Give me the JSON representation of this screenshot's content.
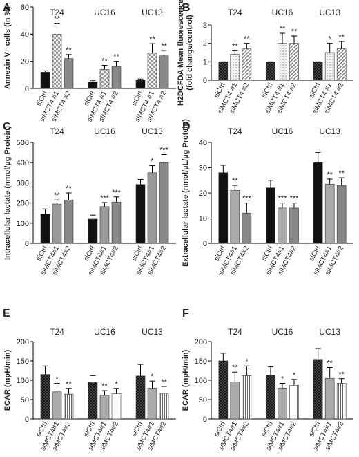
{
  "chart_data": [
    {
      "type": "bar",
      "panel": "A",
      "ylabel": [
        "Annexin V⁺ cells (in %)"
      ],
      "groups": [
        "T24",
        "UC16",
        "UC13"
      ],
      "ylim": [
        0,
        60
      ],
      "yticks": [
        0,
        20,
        40,
        60
      ],
      "series": [
        {
          "name": "siCtrl",
          "color": "#111111",
          "pattern": null,
          "values": [
            12,
            5,
            6
          ],
          "errors": [
            1,
            1,
            1
          ],
          "significance": [
            null,
            null,
            null
          ]
        },
        {
          "name": "siMCT4 #1",
          "color": "#cccccc",
          "pattern": "checker",
          "values": [
            40,
            14,
            26
          ],
          "errors": [
            8,
            3,
            7
          ],
          "significance": [
            "**",
            "**",
            "**"
          ]
        },
        {
          "name": "siMCT4 #2",
          "color": "#888888",
          "pattern": null,
          "values": [
            22,
            16,
            24
          ],
          "errors": [
            3,
            4,
            4
          ],
          "significance": [
            "**",
            "**",
            "**"
          ]
        }
      ]
    },
    {
      "type": "bar",
      "panel": "B",
      "ylabel": [
        "H2DCFDA Mean fluorescence",
        "(fold change/control)"
      ],
      "groups": [
        "T24",
        "UC16",
        "UC13"
      ],
      "ylim": [
        0,
        3
      ],
      "yticks": [
        0,
        1,
        2,
        3
      ],
      "series": [
        {
          "name": "siCtrl",
          "color": "#444444",
          "pattern": "crosshatch",
          "values": [
            1,
            1,
            1
          ],
          "errors": [
            0,
            0,
            0
          ],
          "significance": [
            null,
            null,
            null
          ]
        },
        {
          "name": "siMCT4 #1",
          "color": "#dddddd",
          "pattern": "dots",
          "values": [
            1.4,
            2.0,
            1.5
          ],
          "errors": [
            0.2,
            0.55,
            0.5
          ],
          "significance": [
            "**",
            "**",
            "*"
          ]
        },
        {
          "name": "siMCT4 #2",
          "color": "#aaaaaa",
          "pattern": "diag",
          "values": [
            1.7,
            2.0,
            1.7
          ],
          "errors": [
            0.3,
            0.4,
            0.4
          ],
          "significance": [
            "**",
            "**",
            "**"
          ]
        }
      ]
    },
    {
      "type": "bar",
      "panel": "C",
      "ylabel": [
        "Intracellular lactate (nmol/µg Protein)"
      ],
      "groups": [
        "T24",
        "UC16",
        "UC13"
      ],
      "ylim": [
        0,
        500
      ],
      "yticks": [
        0,
        100,
        200,
        300,
        400,
        500
      ],
      "series": [
        {
          "name": "siCtrl",
          "color": "#111111",
          "pattern": null,
          "values": [
            145,
            120,
            292
          ],
          "errors": [
            25,
            20,
            25
          ],
          "significance": [
            null,
            null,
            null
          ]
        },
        {
          "name": "siMCT4#1",
          "color": "#999999",
          "pattern": null,
          "values": [
            195,
            182,
            350
          ],
          "errors": [
            20,
            20,
            35
          ],
          "significance": [
            "**",
            "***",
            "*"
          ]
        },
        {
          "name": "siMCT4#2",
          "color": "#888888",
          "pattern": null,
          "values": [
            215,
            205,
            400
          ],
          "errors": [
            35,
            25,
            40
          ],
          "significance": [
            "**",
            "***",
            "***"
          ]
        }
      ]
    },
    {
      "type": "bar",
      "panel": "D",
      "ylabel": [
        "Extracellular lactate (nmol/µL/µg Protein)"
      ],
      "groups": [
        "T24",
        "UC16",
        "UC13"
      ],
      "ylim": [
        0,
        40
      ],
      "yticks": [
        0,
        10,
        20,
        30,
        40
      ],
      "series": [
        {
          "name": "siCtrl",
          "color": "#111111",
          "pattern": null,
          "values": [
            28,
            22,
            32
          ],
          "errors": [
            3,
            3,
            4
          ],
          "significance": [
            null,
            null,
            null
          ]
        },
        {
          "name": "siMCT4#1",
          "color": "#aaaaaa",
          "pattern": null,
          "values": [
            21,
            14,
            23.5
          ],
          "errors": [
            2,
            2,
            2
          ],
          "significance": [
            "**",
            "***",
            "**"
          ]
        },
        {
          "name": "siMCT4#2",
          "color": "#888888",
          "pattern": null,
          "values": [
            12,
            14,
            23
          ],
          "errors": [
            4,
            2,
            3
          ],
          "significance": [
            "***",
            "***",
            "**"
          ]
        }
      ]
    },
    {
      "type": "bar",
      "panel": "E",
      "ylabel": [
        "ECAR (mpH/min)"
      ],
      "groups": [
        "T24",
        "UC16",
        "UC13"
      ],
      "ylim": [
        0,
        200
      ],
      "yticks": [
        0,
        50,
        100,
        150,
        200
      ],
      "series": [
        {
          "name": "siCtrl",
          "color": "#444444",
          "pattern": "crosshatch",
          "values": [
            115,
            94,
            111
          ],
          "errors": [
            22,
            18,
            30
          ],
          "significance": [
            null,
            null,
            null
          ]
        },
        {
          "name": "siMCT4#1",
          "color": "#aaaaaa",
          "pattern": null,
          "values": [
            70,
            61,
            80
          ],
          "errors": [
            22,
            12,
            18
          ],
          "significance": [
            "*",
            "**",
            "*"
          ]
        },
        {
          "name": "siMCT4#2",
          "color": "#ffffff",
          "pattern": "vstripe",
          "values": [
            64,
            65,
            66
          ],
          "errors": [
            15,
            14,
            18
          ],
          "significance": [
            "**",
            "*",
            "**"
          ]
        }
      ]
    },
    {
      "type": "bar",
      "panel": "F",
      "ylabel": [
        "ECAR (mpH/min)"
      ],
      "groups": [
        "T24",
        "UC16",
        "UC13"
      ],
      "ylim": [
        0,
        200
      ],
      "yticks": [
        0,
        50,
        100,
        150,
        200
      ],
      "series": [
        {
          "name": "siCtrl",
          "color": "#444444",
          "pattern": "crosshatch",
          "values": [
            150,
            113,
            154
          ],
          "errors": [
            20,
            22,
            28
          ],
          "significance": [
            null,
            null,
            null
          ]
        },
        {
          "name": "siMCT4#1",
          "color": "#aaaaaa",
          "pattern": null,
          "values": [
            96,
            80,
            105
          ],
          "errors": [
            25,
            12,
            28
          ],
          "significance": [
            "**",
            "*",
            "**"
          ]
        },
        {
          "name": "siMCT4#2",
          "color": "#ffffff",
          "pattern": "vstripe",
          "values": [
            112,
            87,
            92
          ],
          "errors": [
            25,
            15,
            12
          ],
          "significance": [
            "*",
            "*",
            "**"
          ]
        }
      ]
    }
  ]
}
